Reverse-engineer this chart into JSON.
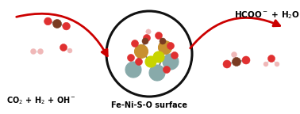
{
  "bg_color": "#ffffff",
  "left_label": "CO$_2$ + H$_2$ + OH$^-$",
  "right_label": "HCOO$^-$ + H$_2$O",
  "center_label": "Fe-Ni-S-O surface",
  "arrow_color": "#cc0000",
  "circle_color": "#111111",
  "atom_C": "#7a3b22",
  "atom_O": "#e03030",
  "atom_H": "#f0b8b8",
  "atom_S": "#c8d400",
  "atom_Fe": "#c89030",
  "atom_Ni": "#88aaaa",
  "figsize": [
    3.78,
    1.44
  ],
  "dpi": 100
}
